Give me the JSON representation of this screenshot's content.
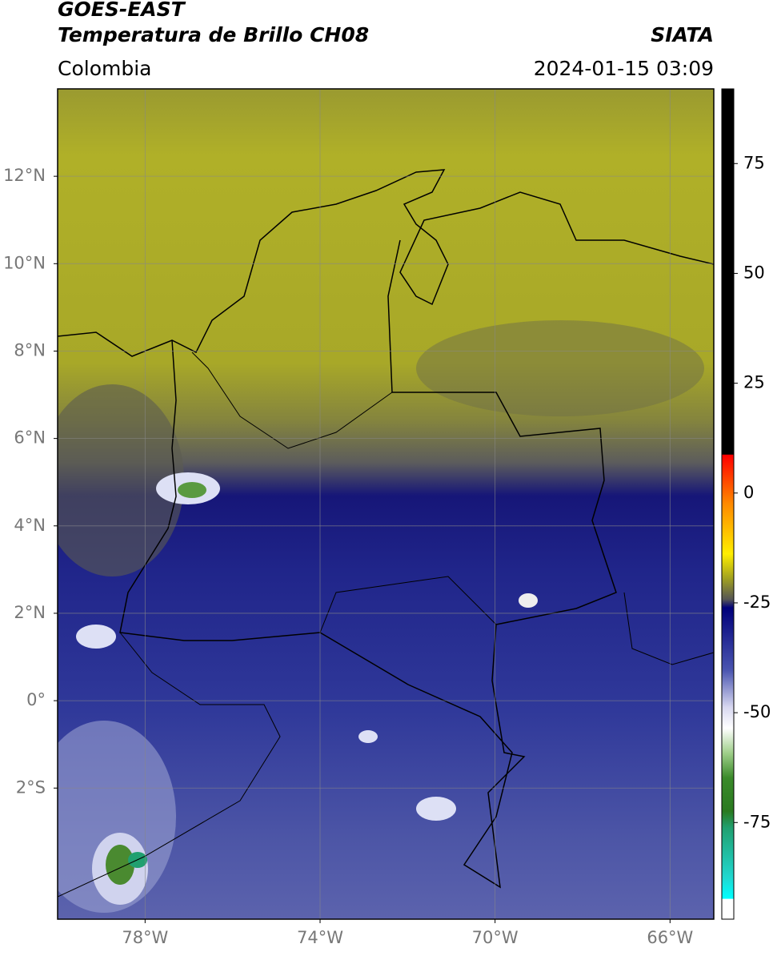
{
  "header": {
    "title_line_1": "GOES-EAST",
    "title_line_2": "Temperatura de Brillo CH08",
    "source": "SIATA",
    "region": "Colombia",
    "timestamp": "2024-01-15 03:09"
  },
  "map": {
    "xlim": [
      -80,
      -65
    ],
    "ylim": [
      -5,
      14
    ],
    "xticks": [
      {
        "value": -78,
        "label": "78°W"
      },
      {
        "value": -74,
        "label": "74°W"
      },
      {
        "value": -70,
        "label": "70°W"
      },
      {
        "value": -66,
        "label": "66°W"
      }
    ],
    "yticks": [
      {
        "value": 12,
        "label": "12°N"
      },
      {
        "value": 10,
        "label": "10°N"
      },
      {
        "value": 8,
        "label": "8°N"
      },
      {
        "value": 6,
        "label": "6°N"
      },
      {
        "value": 4,
        "label": "4°N"
      },
      {
        "value": 2,
        "label": "2°N"
      },
      {
        "value": 0,
        "label": "0°"
      },
      {
        "value": -2,
        "label": "2°S"
      }
    ],
    "grid": true
  },
  "colorbar": {
    "lim": [
      -97,
      92
    ],
    "ticks": [
      75,
      50,
      25,
      0,
      -25,
      -50,
      -75
    ]
  }
}
